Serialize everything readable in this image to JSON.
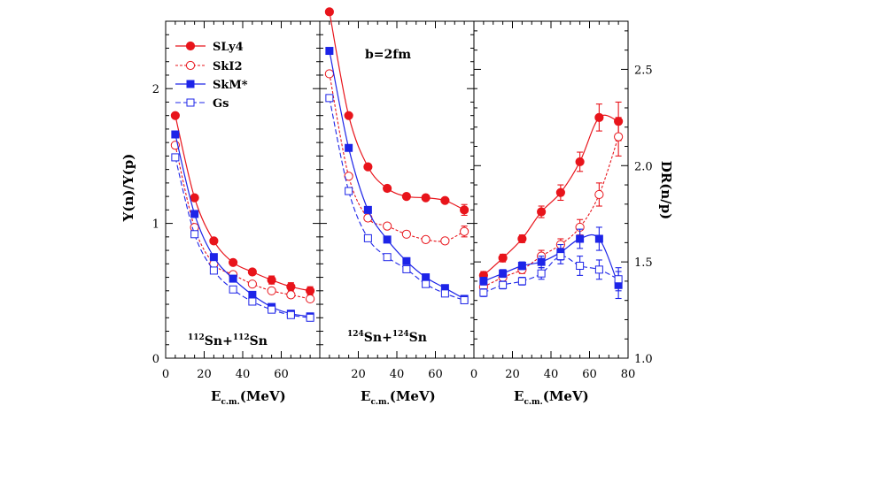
{
  "chart_data": {
    "type": "scatter",
    "title": "",
    "annotation": "b=2fm",
    "xlim": [
      0,
      80
    ],
    "x": [
      5,
      15,
      25,
      35,
      45,
      55,
      65,
      75
    ],
    "xticks": [
      "0",
      "20",
      "40",
      "60",
      "80"
    ],
    "legend": {
      "placement": "top-left",
      "entries": [
        "SLy4",
        "SkI2",
        "SkM*",
        "Gs"
      ]
    },
    "left_ylabel": "Y(n)/Y(p)",
    "left_ylim": [
      0,
      2.5
    ],
    "left_yticks": [
      "0",
      "1",
      "2"
    ],
    "right_ylabel": "DR(n/p)",
    "right_ylim": [
      1.0,
      2.75
    ],
    "right_yticks": [
      "1.0",
      "1.5",
      "2.0",
      "2.5"
    ],
    "panels": [
      {
        "xlabel": "E",
        "xlabel_sub": "c.m.",
        "xlabel_unit": "(MeV)",
        "system": {
          "a1": "112",
          "el1": "Sn+",
          "a2": "112",
          "el2": "Sn"
        },
        "series": [
          {
            "name": "SLy4",
            "values": [
              1.8,
              1.19,
              0.87,
              0.71,
              0.64,
              0.58,
              0.53,
              0.5
            ]
          },
          {
            "name": "SkI2",
            "values": [
              1.58,
              0.97,
              0.7,
              0.62,
              0.55,
              0.5,
              0.47,
              0.44
            ]
          },
          {
            "name": "SkM*",
            "values": [
              1.66,
              1.07,
              0.75,
              0.59,
              0.47,
              0.38,
              0.33,
              0.31
            ]
          },
          {
            "name": "Gs",
            "values": [
              1.49,
              0.92,
              0.65,
              0.51,
              0.42,
              0.36,
              0.32,
              0.3
            ]
          }
        ]
      },
      {
        "xlabel": "E",
        "xlabel_sub": "c.m.",
        "xlabel_unit": "(MeV)",
        "system": {
          "a1": "124",
          "el1": "Sn+",
          "a2": "124",
          "el2": "Sn"
        },
        "series": [
          {
            "name": "SLy4",
            "values": [
              2.57,
              1.8,
              1.42,
              1.26,
              1.2,
              1.19,
              1.17,
              1.1
            ]
          },
          {
            "name": "SkI2",
            "values": [
              2.11,
              1.35,
              1.04,
              0.98,
              0.92,
              0.88,
              0.87,
              0.94
            ]
          },
          {
            "name": "SkM*",
            "values": [
              2.28,
              1.56,
              1.1,
              0.88,
              0.72,
              0.6,
              0.52,
              0.44
            ]
          },
          {
            "name": "Gs",
            "values": [
              1.93,
              1.24,
              0.89,
              0.75,
              0.66,
              0.55,
              0.48,
              0.43
            ]
          }
        ]
      },
      {
        "xlabel": "E",
        "xlabel_sub": "c.m.",
        "xlabel_unit": "(MeV)",
        "series": [
          {
            "name": "SLy4",
            "values": [
              1.43,
              1.52,
              1.62,
              1.76,
              1.86,
              2.02,
              2.25,
              2.23
            ]
          },
          {
            "name": "SkI2",
            "values": [
              1.37,
              1.42,
              1.46,
              1.53,
              1.59,
              1.68,
              1.85,
              2.15
            ]
          },
          {
            "name": "SkM*",
            "values": [
              1.4,
              1.44,
              1.48,
              1.5,
              1.55,
              1.62,
              1.62,
              1.38
            ]
          },
          {
            "name": "Gs",
            "values": [
              1.34,
              1.38,
              1.4,
              1.44,
              1.53,
              1.48,
              1.46,
              1.41
            ]
          }
        ]
      }
    ]
  }
}
